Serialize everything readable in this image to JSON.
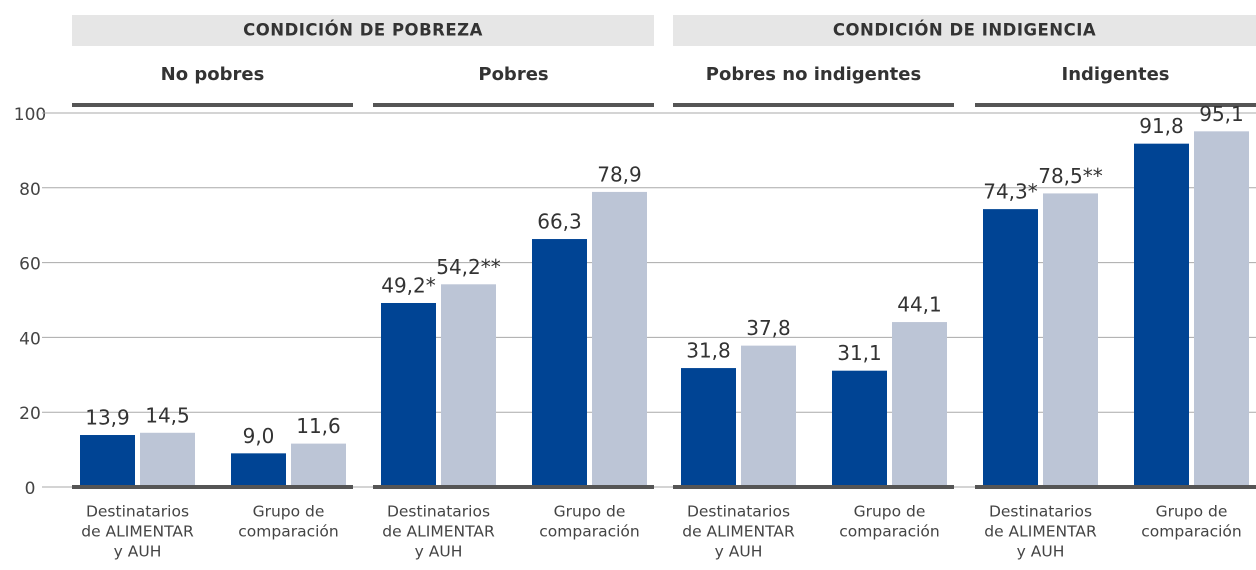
{
  "chart_data": {
    "type": "bar",
    "ylim": [
      0,
      100
    ],
    "yticks": [
      0,
      20,
      40,
      60,
      80,
      100
    ],
    "grid": true,
    "headers": [
      {
        "title": "CONDICIÓN DE POBREZA"
      },
      {
        "title": "CONDICIÓN DE INDIGENCIA"
      }
    ],
    "panels": [
      {
        "title": "No pobres",
        "categories": [
          [
            "Destinatarios",
            "de ALIMENTAR",
            "y AUH"
          ],
          [
            "Grupo de",
            "comparación"
          ]
        ],
        "series": [
          {
            "color": "#004494",
            "values": [
              13.9,
              9.0
            ],
            "value_labels": [
              "13,9",
              "9,0"
            ]
          },
          {
            "color": "#bcc5d6",
            "values": [
              14.5,
              11.6
            ],
            "value_labels": [
              "14,5",
              "11,6"
            ]
          }
        ]
      },
      {
        "title": "Pobres",
        "categories": [
          [
            "Destinatarios",
            "de ALIMENTAR",
            "y AUH"
          ],
          [
            "Grupo de",
            "comparación"
          ]
        ],
        "series": [
          {
            "color": "#004494",
            "values": [
              49.2,
              66.3
            ],
            "value_labels": [
              "49,2*",
              "66,3"
            ]
          },
          {
            "color": "#bcc5d6",
            "values": [
              54.2,
              78.9
            ],
            "value_labels": [
              "54,2**",
              "78,9"
            ]
          }
        ]
      },
      {
        "title": "Pobres no indigentes",
        "categories": [
          [
            "Destinatarios",
            "de ALIMENTAR",
            "y AUH"
          ],
          [
            "Grupo de",
            "comparación"
          ]
        ],
        "series": [
          {
            "color": "#004494",
            "values": [
              31.8,
              31.1
            ],
            "value_labels": [
              "31,8",
              "31,1"
            ]
          },
          {
            "color": "#bcc5d6",
            "values": [
              37.8,
              44.1
            ],
            "value_labels": [
              "37,8",
              "44,1"
            ]
          }
        ]
      },
      {
        "title": "Indigentes",
        "categories": [
          [
            "Destinatarios",
            "de ALIMENTAR",
            "y AUH"
          ],
          [
            "Grupo de",
            "comparación"
          ]
        ],
        "series": [
          {
            "color": "#004494",
            "values": [
              74.3,
              91.8
            ],
            "value_labels": [
              "74,3*",
              "91,8"
            ]
          },
          {
            "color": "#bcc5d6",
            "values": [
              78.5,
              95.1
            ],
            "value_labels": [
              "78,5**",
              "95,1"
            ]
          }
        ]
      }
    ]
  }
}
